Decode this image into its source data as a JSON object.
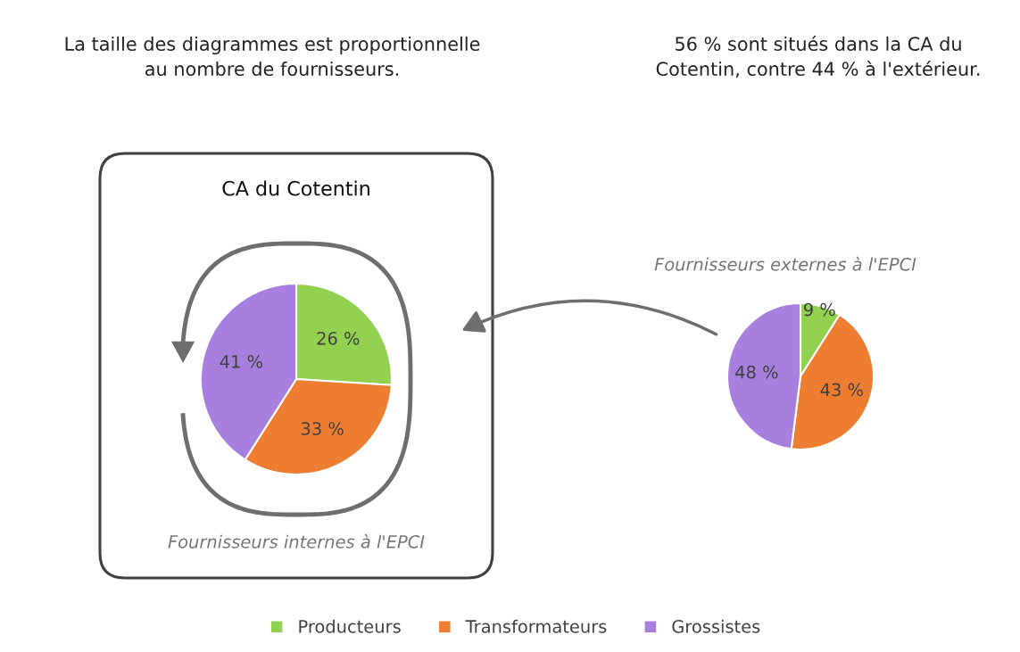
{
  "chart_data": [
    {
      "type": "pie",
      "title": "CA du Cotentin",
      "categories": [
        "Producteurs",
        "Transformateurs",
        "Grossistes"
      ],
      "values": [
        26,
        33,
        41
      ],
      "colors": [
        "#92d050",
        "#ed7d31",
        "#a77fde"
      ],
      "data_labels": true,
      "value_labels": [
        "26 %",
        "33 %",
        "41 %"
      ],
      "legend": "bottom",
      "annotations": [
        "La taille des diagrammes est proportionnelle\nau nombre de fournisseurs.",
        "Fournisseurs internes à l'EPCI"
      ]
    },
    {
      "type": "pie",
      "title": "Fournisseurs externes à l'EPCI",
      "values": [
        9,
        43,
        48
      ],
      "colors": [
        "#92d050",
        "#ed7d31",
        "#a77fde"
      ],
      "data_labels": true,
      "value_labels": [
        "9 %",
        "43 %",
        "48 %"
      ],
      "annotations": [
        "56 % sont situés dans la CA du\nCotentin, contre 44 % à l'extérieur."
      ]
    }
  ]
}
